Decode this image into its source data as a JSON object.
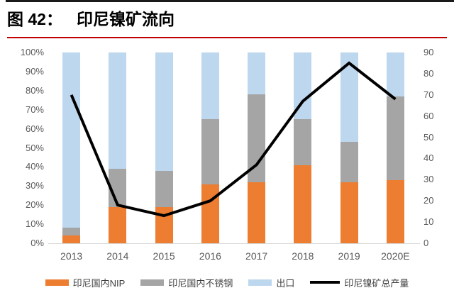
{
  "header": {
    "figure_label": "图 42：",
    "title": "印尼镍矿流向"
  },
  "chart_data": {
    "type": "bar",
    "subtype": "100%-stacked-bars-with-line-overlay",
    "title": "印尼镍矿流向",
    "categories": [
      "2013",
      "2014",
      "2015",
      "2016",
      "2017",
      "2018",
      "2019",
      "2020E"
    ],
    "series": [
      {
        "name": "印尼国内NIP",
        "type": "bar",
        "axis": "left",
        "color": "#ED7D31",
        "unit": "%",
        "values": [
          4,
          19,
          19,
          31,
          32,
          41,
          32,
          33
        ]
      },
      {
        "name": "印尼国内不锈钢",
        "type": "bar",
        "axis": "left",
        "color": "#A5A5A5",
        "unit": "%",
        "values": [
          4,
          20,
          19,
          34,
          46,
          24,
          21,
          44
        ]
      },
      {
        "name": "出口",
        "type": "bar",
        "axis": "left",
        "color": "#BDD7EE",
        "unit": "%",
        "values": [
          92,
          61,
          62,
          35,
          22,
          35,
          47,
          23
        ]
      },
      {
        "name": "印尼镍矿总产量",
        "type": "line",
        "axis": "right",
        "color": "#000000",
        "values": [
          70,
          18,
          13,
          20,
          37,
          67,
          85,
          68
        ]
      }
    ],
    "left_axis": {
      "min": 0,
      "max": 100,
      "ticks": [
        "0%",
        "10%",
        "20%",
        "30%",
        "40%",
        "50%",
        "60%",
        "70%",
        "80%",
        "90%",
        "100%"
      ]
    },
    "right_axis": {
      "min": 0,
      "max": 90,
      "ticks": [
        "0",
        "10",
        "20",
        "30",
        "40",
        "50",
        "60",
        "70",
        "80",
        "90"
      ]
    },
    "legend_position": "bottom",
    "grid": false,
    "stacked": true
  },
  "colors": {
    "top_border": "#1A1A1A",
    "title_underline": "#C00000",
    "axis_text": "#595959",
    "baseline": "#D9D9D9",
    "background": "#FFFFFF"
  }
}
